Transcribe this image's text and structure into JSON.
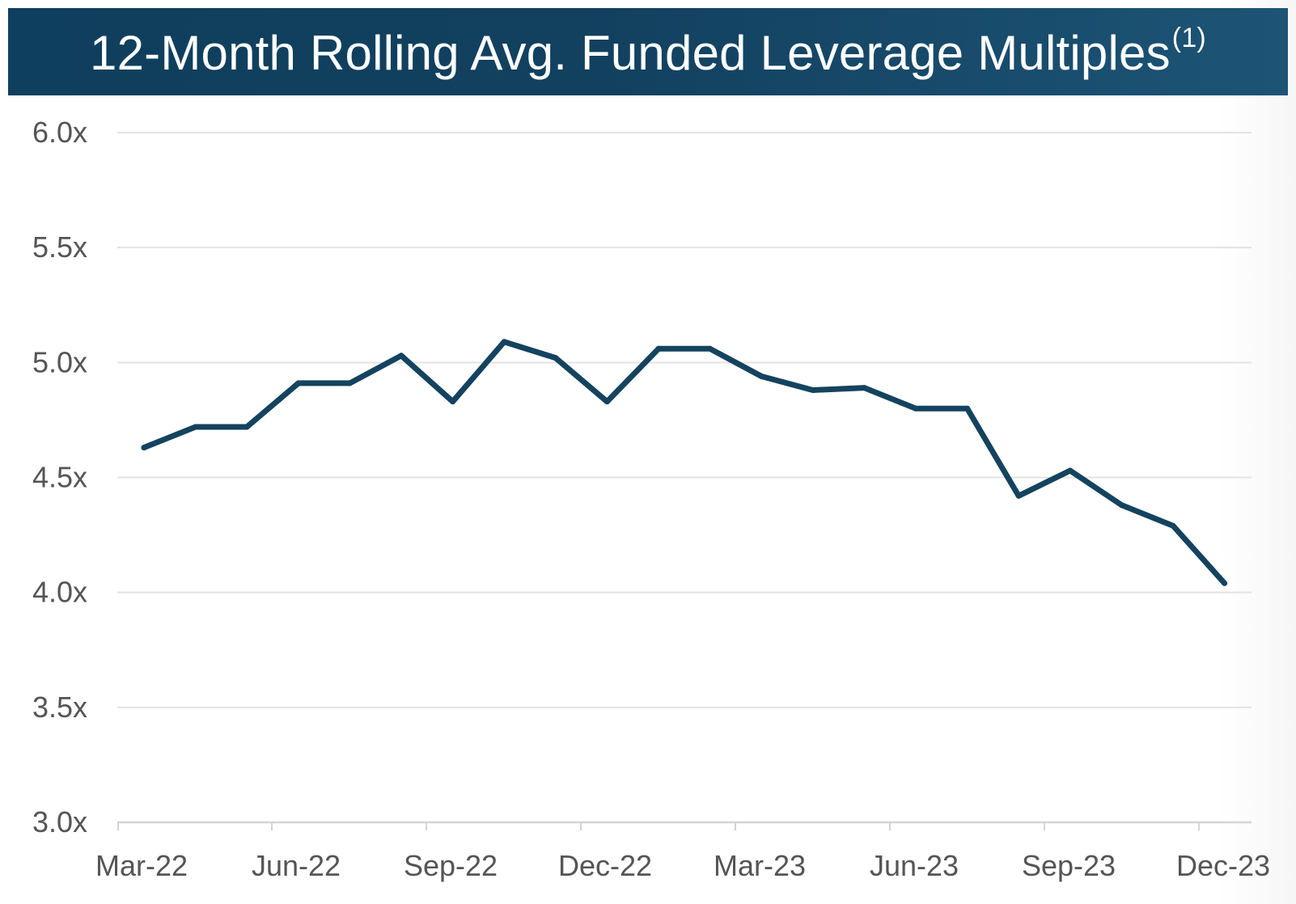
{
  "chart_data": {
    "type": "line",
    "title": "12-Month Rolling Avg. Funded Leverage Multiples",
    "title_footnote": "(1)",
    "xlabel": "",
    "ylabel": "",
    "ylim": [
      3.0,
      6.0
    ],
    "y_ticks": [
      "6.0x",
      "5.5x",
      "5.0x",
      "4.5x",
      "4.0x",
      "3.5x",
      "3.0x"
    ],
    "y_tick_values": [
      6.0,
      5.5,
      5.0,
      4.5,
      4.0,
      3.5,
      3.0
    ],
    "x_tick_labels": [
      "Mar-22",
      "Jun-22",
      "Sep-22",
      "Dec-22",
      "Mar-23",
      "Jun-23",
      "Sep-23",
      "Dec-23"
    ],
    "categories": [
      "Mar-22",
      "Apr-22",
      "May-22",
      "Jun-22",
      "Jul-22",
      "Aug-22",
      "Sep-22",
      "Oct-22",
      "Nov-22",
      "Dec-22",
      "Jan-23",
      "Feb-23",
      "Mar-23",
      "Apr-23",
      "May-23",
      "Jun-23",
      "Jul-23",
      "Aug-23",
      "Sep-23",
      "Oct-23",
      "Nov-23",
      "Dec-23"
    ],
    "series": [
      {
        "values": [
          4.63,
          4.72,
          4.72,
          4.91,
          4.91,
          5.03,
          4.83,
          5.09,
          5.02,
          4.83,
          5.06,
          5.06,
          4.94,
          4.88,
          4.89,
          4.8,
          4.8,
          4.42,
          4.53,
          4.38,
          4.29,
          4.04
        ],
        "color": "#14435f"
      }
    ],
    "grid": true,
    "legend": "none"
  },
  "colors": {
    "banner": "#12405f",
    "line": "#14435f",
    "grid": "#e3e3e3",
    "tick_text": "#555555"
  }
}
